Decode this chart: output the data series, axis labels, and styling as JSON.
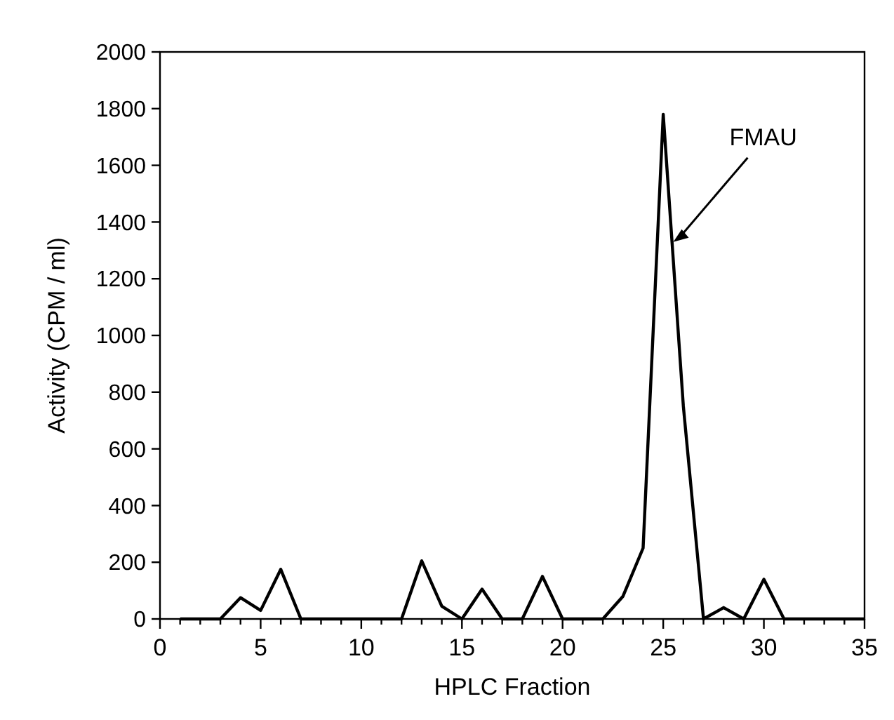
{
  "chart_data": {
    "type": "line",
    "xlabel": "HPLC Fraction",
    "ylabel": "Activity (CPM / ml)",
    "x": [
      1,
      2,
      3,
      4,
      5,
      6,
      7,
      8,
      9,
      10,
      11,
      12,
      13,
      14,
      15,
      16,
      17,
      18,
      19,
      20,
      21,
      22,
      23,
      24,
      25,
      26,
      27,
      28,
      29,
      30,
      31,
      32,
      33,
      34,
      35
    ],
    "series": [
      {
        "color": "#000000",
        "values": [
          0,
          0,
          0,
          75,
          30,
          175,
          0,
          0,
          0,
          0,
          0,
          0,
          205,
          45,
          0,
          105,
          0,
          0,
          150,
          0,
          0,
          0,
          80,
          250,
          1780,
          750,
          0,
          40,
          0,
          140,
          0,
          0,
          0,
          0,
          0
        ]
      }
    ],
    "xlim": [
      0,
      35
    ],
    "xticks": [
      0,
      {
        "value": 1,
        "label": null
      },
      {
        "value": 2,
        "label": null
      },
      {
        "value": 3,
        "label": null
      },
      {
        "value": 4,
        "label": null
      },
      5,
      {
        "value": 6,
        "label": null
      },
      {
        "value": 7,
        "label": null
      },
      {
        "value": 8,
        "label": null
      },
      {
        "value": 9,
        "label": null
      },
      10,
      {
        "value": 11,
        "label": null
      },
      {
        "value": 12,
        "label": null
      },
      {
        "value": 13,
        "label": null
      },
      {
        "value": 14,
        "label": null
      },
      15,
      {
        "value": 16,
        "label": null
      },
      {
        "value": 17,
        "label": null
      },
      {
        "value": 18,
        "label": null
      },
      {
        "value": 19,
        "label": null
      },
      20,
      {
        "value": 21,
        "label": null
      },
      {
        "value": 22,
        "label": null
      },
      {
        "value": 23,
        "label": null
      },
      {
        "value": 24,
        "label": null
      },
      25,
      {
        "value": 26,
        "label": null
      },
      {
        "value": 27,
        "label": null
      },
      {
        "value": 28,
        "label": null
      },
      {
        "value": 29,
        "label": null
      },
      30,
      {
        "value": 31,
        "label": null
      },
      {
        "value": 32,
        "label": null
      },
      {
        "value": 33,
        "label": null
      },
      {
        "value": 34,
        "label": null
      },
      35
    ],
    "ylim": [
      0,
      2000
    ],
    "yticks": [
      0,
      200,
      400,
      600,
      800,
      1000,
      1200,
      1400,
      1600,
      1800,
      2000
    ],
    "grid": false,
    "marker": "none",
    "line_style": "solid",
    "annotations": [
      {
        "text": "FMAU",
        "x": 25.5,
        "y": 1330
      }
    ]
  }
}
